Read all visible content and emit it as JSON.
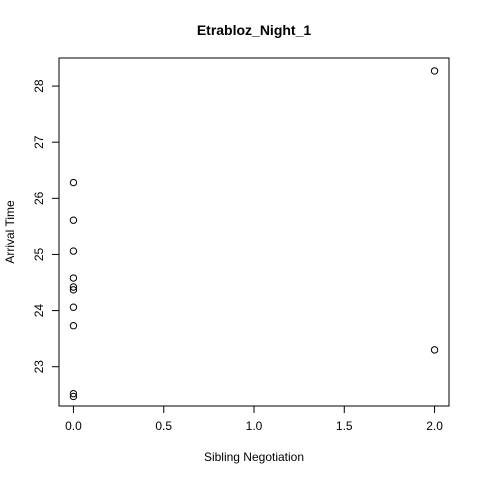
{
  "chart_data": {
    "type": "scatter",
    "title": "Etrabloz_Night_1",
    "xlabel": "Sibling Negotiation",
    "ylabel": "Arrival Time",
    "xlim": [
      -0.08,
      2.08
    ],
    "ylim": [
      22.3,
      28.5
    ],
    "xticks": [
      0,
      0.5,
      1,
      1.5,
      2
    ],
    "xtick_labels": [
      "0.0",
      "0.5",
      "1.0",
      "1.5",
      "2.0"
    ],
    "yticks": [
      23,
      24,
      25,
      26,
      27,
      28
    ],
    "ytick_labels": [
      "23",
      "24",
      "25",
      "26",
      "27",
      "28"
    ],
    "grid": false,
    "points": [
      {
        "x": 0,
        "y": 26.28
      },
      {
        "x": 0,
        "y": 25.61
      },
      {
        "x": 0,
        "y": 25.06
      },
      {
        "x": 0,
        "y": 24.58
      },
      {
        "x": 0,
        "y": 24.42
      },
      {
        "x": 0,
        "y": 24.37
      },
      {
        "x": 0,
        "y": 24.06
      },
      {
        "x": 0,
        "y": 23.73
      },
      {
        "x": 0,
        "y": 22.52
      },
      {
        "x": 0,
        "y": 22.47
      },
      {
        "x": 2,
        "y": 28.27
      },
      {
        "x": 2,
        "y": 23.3
      }
    ]
  }
}
